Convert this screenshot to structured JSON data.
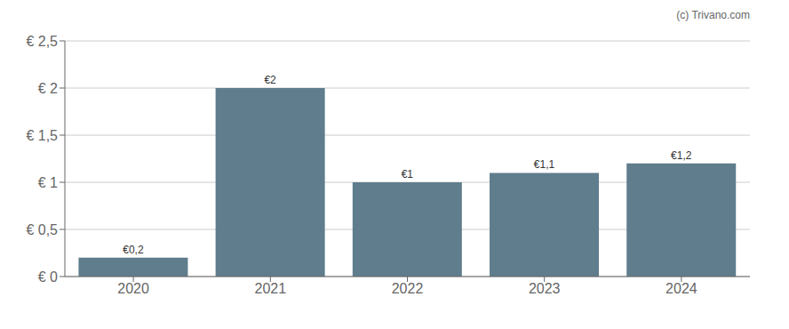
{
  "chart_data": {
    "type": "bar",
    "categories": [
      "2020",
      "2021",
      "2022",
      "2023",
      "2024"
    ],
    "values": [
      0.2,
      2.0,
      1.0,
      1.1,
      1.2
    ],
    "value_labels": [
      "€0,2",
      "€2",
      "€1",
      "€1,1",
      "€1,2"
    ],
    "data_labels": true,
    "color": "#5f7d8c",
    "ylim": [
      0,
      2.5
    ],
    "yticks": [
      {
        "value": 0,
        "label": "€ 0"
      },
      {
        "value": 0.5,
        "label": "€ 0,5"
      },
      {
        "value": 1.0,
        "label": "€ 1"
      },
      {
        "value": 1.5,
        "label": "€ 1,5"
      },
      {
        "value": 2.0,
        "label": "€ 2"
      },
      {
        "value": 2.5,
        "label": "€ 2,5"
      }
    ],
    "grid": true,
    "annotations": [
      "(c) Trivano.com"
    ]
  }
}
